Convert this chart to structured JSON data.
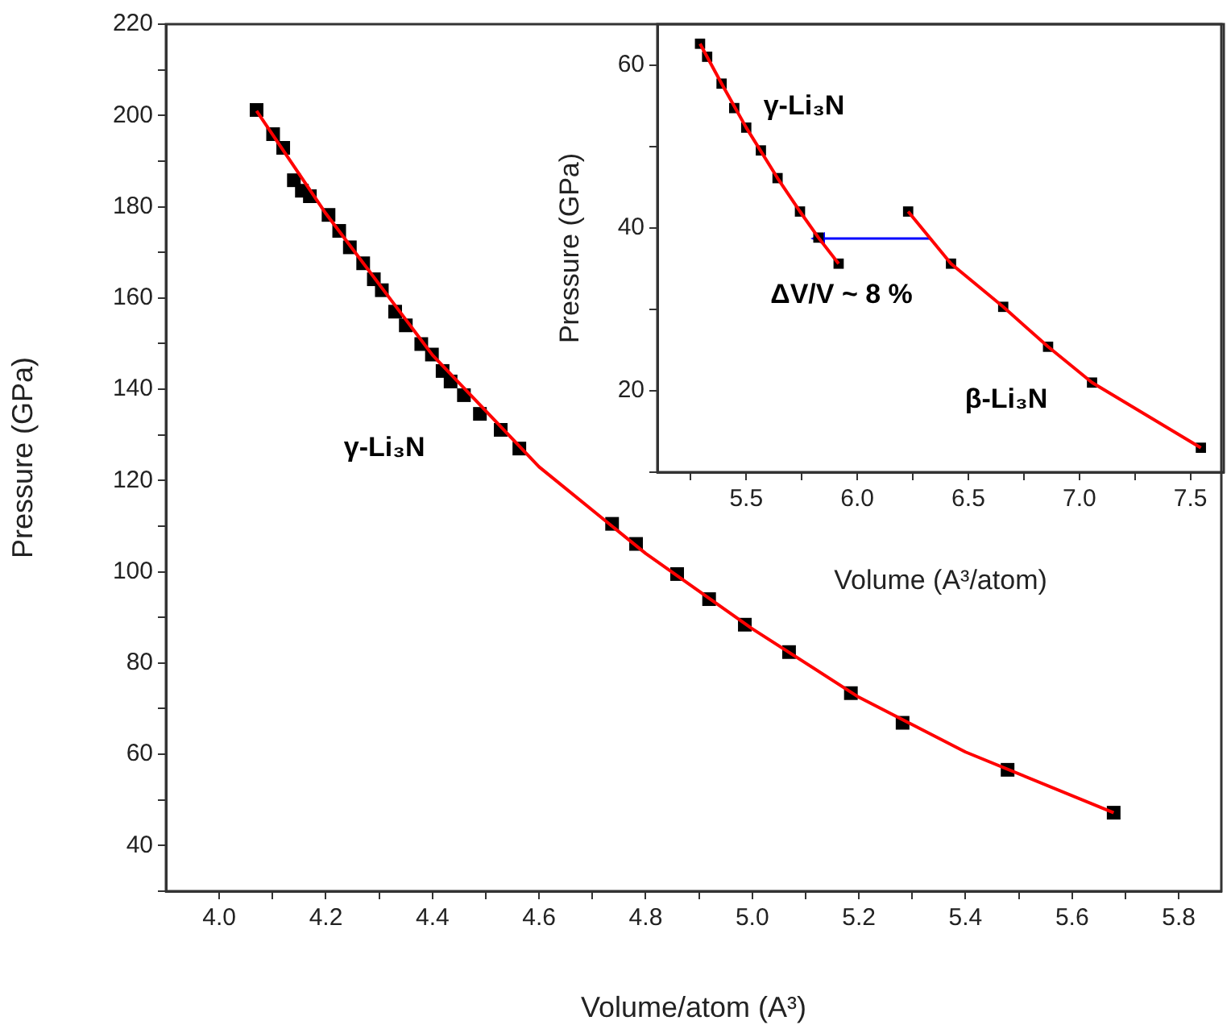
{
  "chart_data": [
    {
      "type": "scatter",
      "xlabel": "Volume/atom (A³)",
      "ylabel": "Pressure (GPa)",
      "xlim": [
        3.9,
        5.88
      ],
      "ylim": [
        30,
        220
      ],
      "xticks": [
        {
          "value": 4.0,
          "label": "4.0"
        },
        {
          "value": 4.1,
          "label": null
        },
        {
          "value": 4.2,
          "label": "4.2"
        },
        {
          "value": 4.3,
          "label": null
        },
        {
          "value": 4.4,
          "label": "4.4"
        },
        {
          "value": 4.5,
          "label": null
        },
        {
          "value": 4.6,
          "label": "4.6"
        },
        {
          "value": 4.7,
          "label": null
        },
        {
          "value": 4.8,
          "label": "4.8"
        },
        {
          "value": 4.9,
          "label": null
        },
        {
          "value": 5.0,
          "label": "5.0"
        },
        {
          "value": 5.1,
          "label": null
        },
        {
          "value": 5.2,
          "label": "5.2"
        },
        {
          "value": 5.3,
          "label": null
        },
        {
          "value": 5.4,
          "label": "5.4"
        },
        {
          "value": 5.5,
          "label": null
        },
        {
          "value": 5.6,
          "label": "5.6"
        },
        {
          "value": 5.7,
          "label": null
        },
        {
          "value": 5.8,
          "label": "5.8"
        }
      ],
      "yticks": [
        {
          "value": 30,
          "label": null
        },
        40,
        {
          "value": 50,
          "label": null
        },
        60,
        {
          "value": 70,
          "label": null
        },
        80,
        {
          "value": 90,
          "label": null
        },
        100,
        {
          "value": 110,
          "label": null
        },
        120,
        {
          "value": 130,
          "label": null
        },
        140,
        {
          "value": 150,
          "label": null
        },
        160,
        {
          "value": 170,
          "label": null
        },
        180,
        {
          "value": 190,
          "label": null
        },
        200,
        {
          "value": 210,
          "label": null
        },
        220
      ],
      "annotations": [
        "γ-Li₃N"
      ],
      "series": [
        {
          "type": "scatter",
          "marker": "square",
          "color": "#000000",
          "x": [
            4.07,
            4.101,
            4.12,
            4.14,
            4.155,
            4.17,
            4.205,
            4.225,
            4.245,
            4.27,
            4.29,
            4.305,
            4.33,
            4.35,
            4.379,
            4.399,
            4.419,
            4.434,
            4.459,
            4.489,
            4.528,
            4.563,
            4.737,
            4.782,
            4.859,
            4.919,
            4.986,
            5.069,
            5.185,
            5.282,
            5.479,
            5.678
          ],
          "values": [
            201.2,
            195.9,
            192.9,
            185.8,
            183.5,
            182.3,
            178.2,
            174.7,
            171.1,
            167.6,
            164.1,
            161.7,
            157.0,
            154.0,
            149.9,
            147.6,
            144.0,
            141.7,
            138.7,
            134.6,
            131.1,
            127.0,
            110.5,
            106.1,
            99.5,
            94.0,
            88.4,
            82.4,
            73.4,
            66.9,
            56.6,
            47.2
          ]
        },
        {
          "type": "line",
          "marker": "none",
          "color": "#ff0000",
          "x": [
            4.07,
            4.2,
            4.4,
            4.6,
            4.8,
            5.0,
            5.2,
            5.4,
            5.678
          ],
          "values": [
            201,
            178.5,
            147.5,
            123,
            104,
            87.5,
            72.5,
            60.5,
            47.2
          ]
        }
      ]
    },
    {
      "type": "scatter",
      "xlabel": "Volume (A³/atom)",
      "ylabel": "Pressure (GPa)",
      "xlim": [
        5.1,
        7.65
      ],
      "ylim": [
        10,
        65
      ],
      "xticks": [
        {
          "value": 5.25,
          "label": null
        },
        5.5,
        {
          "value": 5.75,
          "label": null
        },
        {
          "value": 6,
          "label": "6.0"
        },
        {
          "value": 6.25,
          "label": null
        },
        6.5,
        {
          "value": 6.75,
          "label": null
        },
        {
          "value": 7,
          "label": "7.0"
        },
        {
          "value": 7.25,
          "label": null
        },
        7.5
      ],
      "yticks": [
        {
          "value": 10,
          "label": null
        },
        20,
        {
          "value": 30,
          "label": null
        },
        40,
        {
          "value": 50,
          "label": null
        },
        60
      ],
      "annotations": [
        "γ-Li₃N",
        "ΔV/V ~ 8 %",
        "β-Li₃N"
      ],
      "series": [
        {
          "type": "scatter",
          "marker": "square",
          "color": "#000000",
          "x": [
            5.292,
            5.324,
            5.389,
            5.446,
            5.5,
            5.566,
            5.641,
            5.742,
            5.825,
            5.916
          ],
          "values": [
            62.6,
            61.0,
            57.7,
            54.7,
            52.3,
            49.5,
            46.1,
            42.0,
            38.8,
            35.6
          ]
        },
        {
          "type": "line",
          "marker": "none",
          "color": "#ff0000",
          "x": [
            5.292,
            5.389,
            5.5,
            5.641,
            5.742,
            5.825,
            5.916
          ],
          "values": [
            62.6,
            57.7,
            52.3,
            46.1,
            42.0,
            38.8,
            35.6
          ]
        },
        {
          "type": "scatter",
          "marker": "square",
          "color": "#000000",
          "x": [
            6.229,
            6.422,
            6.657,
            6.859,
            7.057,
            7.547
          ],
          "values": [
            42.0,
            35.6,
            30.3,
            25.4,
            21.0,
            13.0
          ]
        },
        {
          "type": "line",
          "marker": "none",
          "color": "#ff0000",
          "x": [
            6.229,
            6.422,
            6.657,
            6.859,
            7.057,
            7.547
          ],
          "values": [
            42.0,
            35.6,
            30.3,
            25.4,
            21.0,
            13.0
          ]
        }
      ]
    }
  ]
}
